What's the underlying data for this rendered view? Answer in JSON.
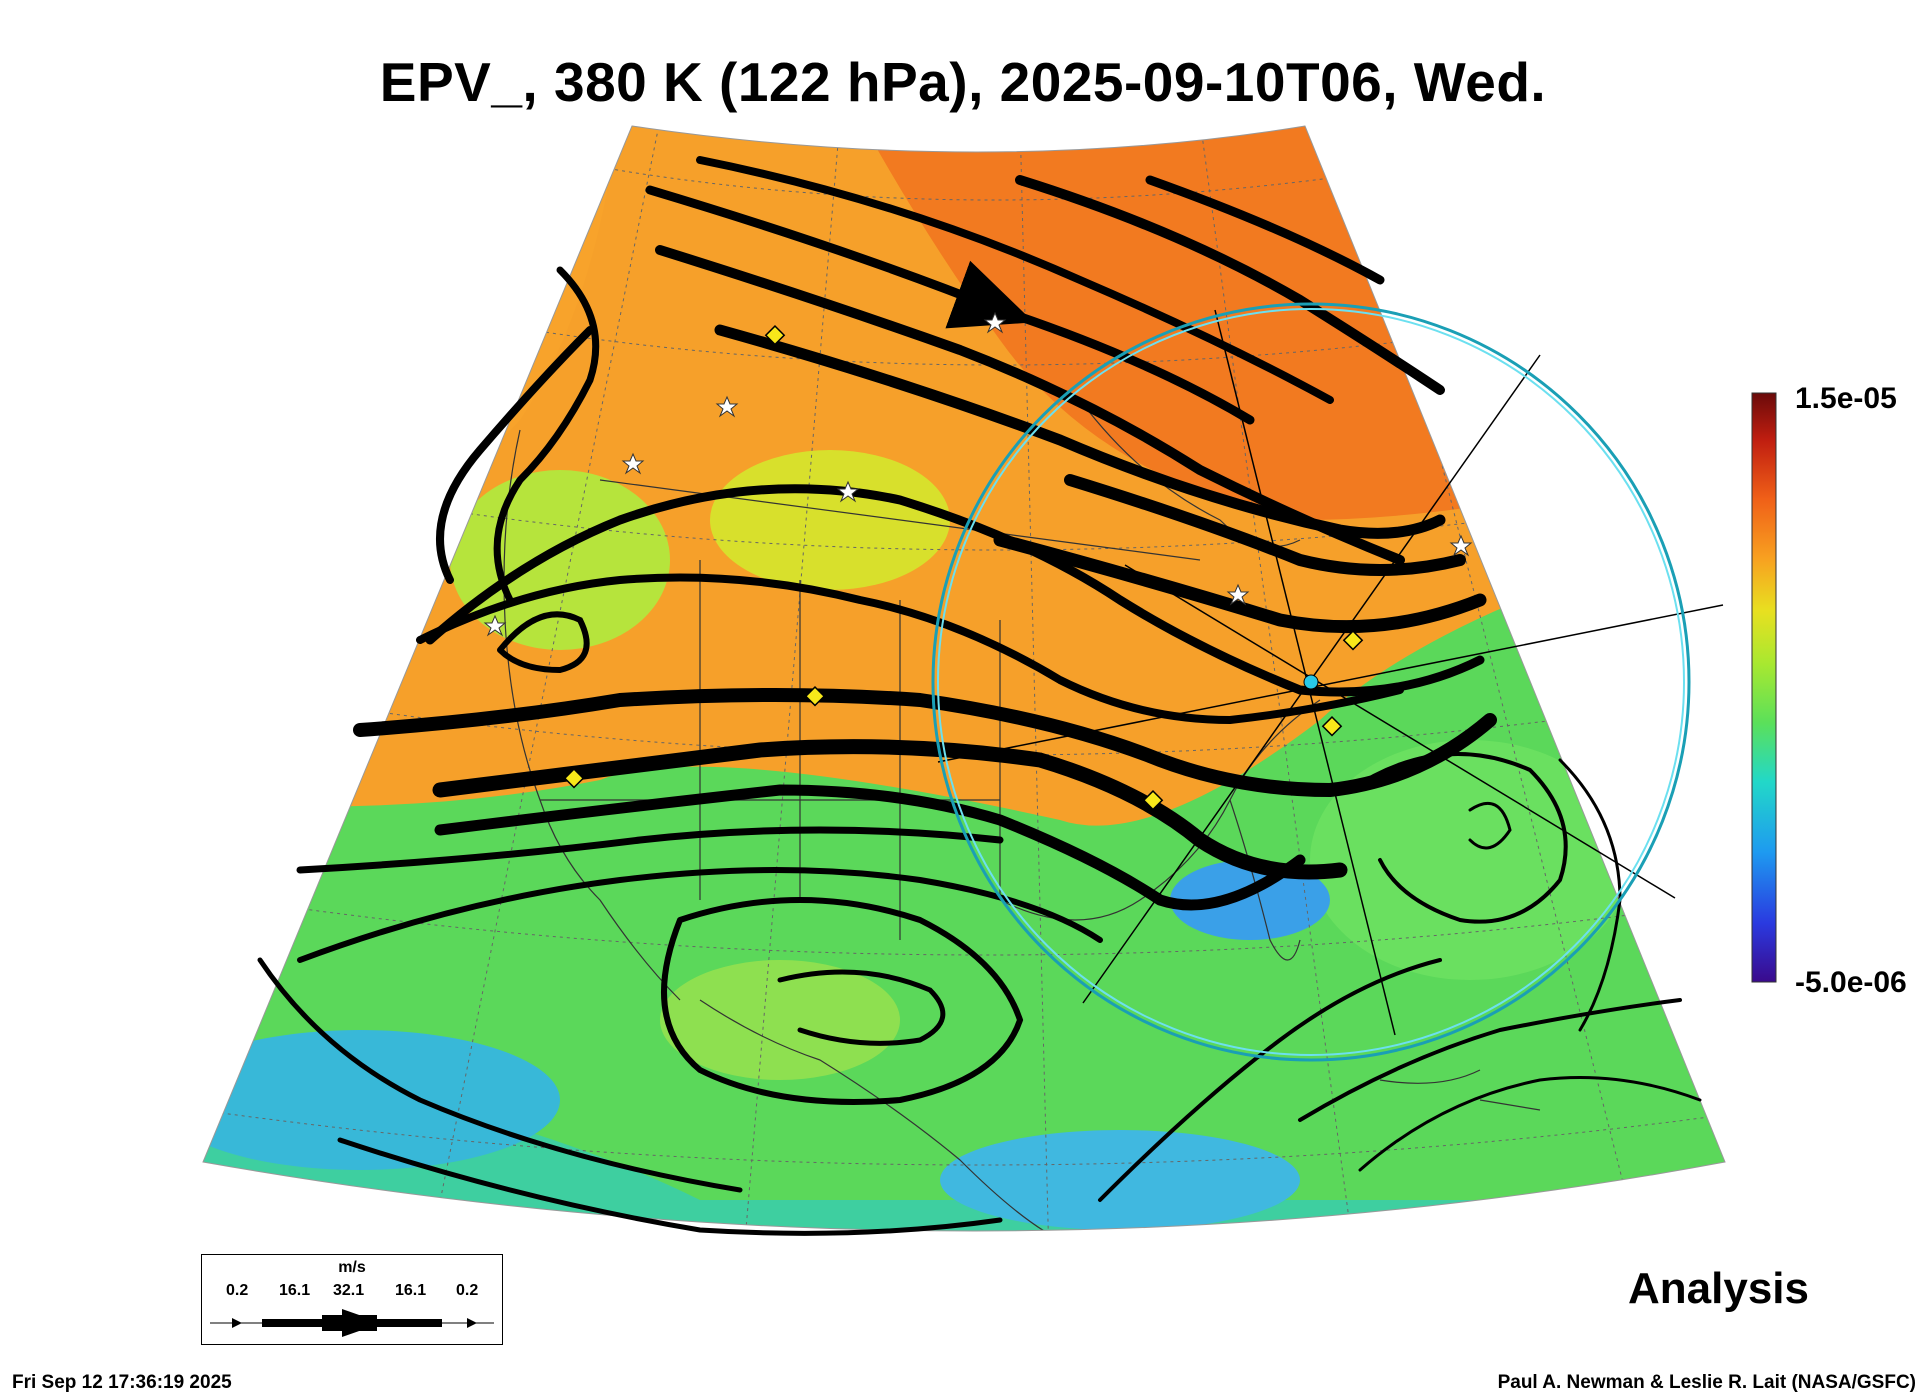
{
  "title": "EPV_, 380 K (122 hPa), 2025-09-10T06, Wed.",
  "colorbar": {
    "max_label": "1.5e-05",
    "min_label": "-5.0e-06",
    "colors": [
      "#3a0a8c",
      "#2a3ae0",
      "#1e9af0",
      "#22d8c8",
      "#5be05a",
      "#a8e830",
      "#e8e020",
      "#f8a020",
      "#f06018",
      "#c01e10",
      "#6a0a0a"
    ]
  },
  "legend": {
    "unit": "m/s",
    "values": [
      "0.2",
      "16.1",
      "32.1",
      "16.1",
      "0.2"
    ]
  },
  "label_analysis": "Analysis",
  "footer_left": "Fri Sep 12 17:36:19 2025",
  "footer_right": "Paul A. Newman & Leslie R. Lait (NASA/GSFC)"
}
